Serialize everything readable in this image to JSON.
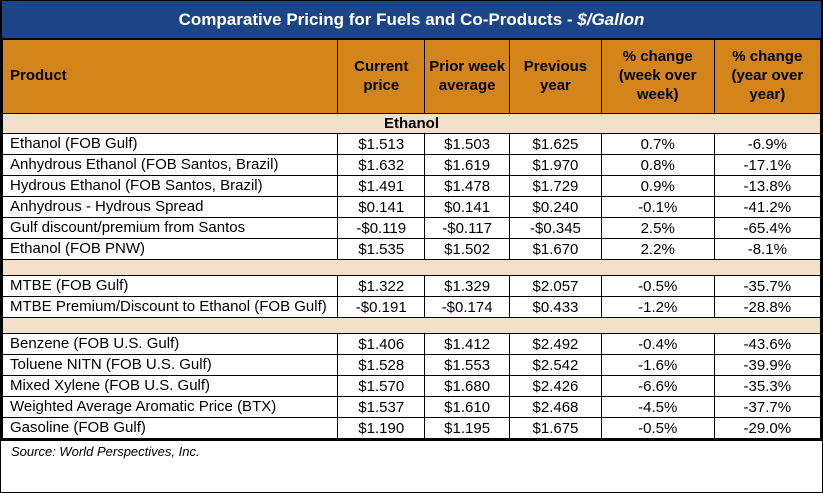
{
  "page": {
    "title_prefix": "Comparative Pricing for Fuels and Co-Products - ",
    "title_unit": "$/Gallon",
    "source_note": "Source: World Perspectives, Inc."
  },
  "colors": {
    "title_bar_blue": "#1C4587",
    "title_text_white": "#FFFFFF",
    "header_orange": "#D3841A",
    "section_tan": "#F2E0CB",
    "border_black": "#000000",
    "row_white": "#FFFFFF"
  },
  "table": {
    "columns": [
      "Product",
      "Current price",
      "Prior week average",
      "Previous year",
      "% change (week over week)",
      "% change (year over year)"
    ],
    "sections": [
      {
        "header": "Ethanol",
        "rows": [
          {
            "product": "Ethanol (FOB Gulf)",
            "current_price": "$1.513",
            "prior_week_avg": "$1.503",
            "previous_year": "$1.625",
            "pct_change_wow": "0.7%",
            "pct_change_yoy": "-6.9%"
          },
          {
            "product": "Anhydrous Ethanol (FOB Santos, Brazil)",
            "current_price": "$1.632",
            "prior_week_avg": "$1.619",
            "previous_year": "$1.970",
            "pct_change_wow": "0.8%",
            "pct_change_yoy": "-17.1%"
          },
          {
            "product": "Hydrous Ethanol (FOB Santos, Brazil)",
            "current_price": "$1.491",
            "prior_week_avg": "$1.478",
            "previous_year": "$1.729",
            "pct_change_wow": "0.9%",
            "pct_change_yoy": "-13.8%"
          },
          {
            "product": "Anhydrous - Hydrous Spread",
            "current_price": "$0.141",
            "prior_week_avg": "$0.141",
            "previous_year": "$0.240",
            "pct_change_wow": "-0.1%",
            "pct_change_yoy": "-41.2%"
          },
          {
            "product": "Gulf discount/premium from Santos",
            "current_price": "-$0.119",
            "prior_week_avg": "-$0.117",
            "previous_year": "-$0.345",
            "pct_change_wow": "2.5%",
            "pct_change_yoy": "-65.4%"
          },
          {
            "product": "Ethanol (FOB PNW)",
            "current_price": "$1.535",
            "prior_week_avg": "$1.502",
            "previous_year": "$1.670",
            "pct_change_wow": "2.2%",
            "pct_change_yoy": "-8.1%"
          }
        ]
      },
      {
        "header": "",
        "rows": [
          {
            "product": "MTBE (FOB Gulf)",
            "current_price": "$1.322",
            "prior_week_avg": "$1.329",
            "previous_year": "$2.057",
            "pct_change_wow": "-0.5%",
            "pct_change_yoy": "-35.7%"
          },
          {
            "product": "MTBE Premium/Discount to Ethanol (FOB Gulf)",
            "current_price": "-$0.191",
            "prior_week_avg": "-$0.174",
            "previous_year": "$0.433",
            "pct_change_wow": "-1.2%",
            "pct_change_yoy": "-28.8%"
          }
        ]
      },
      {
        "header": "",
        "rows": [
          {
            "product": "Benzene (FOB U.S. Gulf)",
            "current_price": "$1.406",
            "prior_week_avg": "$1.412",
            "previous_year": "$2.492",
            "pct_change_wow": "-0.4%",
            "pct_change_yoy": "-43.6%"
          },
          {
            "product": "Toluene NITN (FOB U.S. Gulf)",
            "current_price": "$1.528",
            "prior_week_avg": "$1.553",
            "previous_year": "$2.542",
            "pct_change_wow": "-1.6%",
            "pct_change_yoy": "-39.9%"
          },
          {
            "product": "Mixed Xylene (FOB U.S. Gulf)",
            "current_price": "$1.570",
            "prior_week_avg": "$1.680",
            "previous_year": "$2.426",
            "pct_change_wow": "-6.6%",
            "pct_change_yoy": "-35.3%"
          },
          {
            "product": "Weighted Average Aromatic Price (BTX)",
            "current_price": "$1.537",
            "prior_week_avg": "$1.610",
            "previous_year": "$2.468",
            "pct_change_wow": "-4.5%",
            "pct_change_yoy": "-37.7%"
          },
          {
            "product": "Gasoline (FOB Gulf)",
            "current_price": "$1.190",
            "prior_week_avg": "$1.195",
            "previous_year": "$1.675",
            "pct_change_wow": "-0.5%",
            "pct_change_yoy": "-29.0%"
          }
        ]
      }
    ]
  }
}
